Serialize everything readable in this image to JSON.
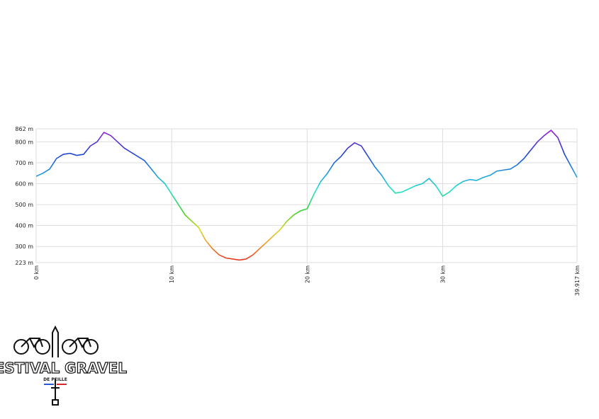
{
  "chart_data": {
    "type": "line",
    "x": [
      0,
      0.5,
      1,
      1.5,
      2,
      2.5,
      3,
      3.5,
      4,
      4.5,
      5,
      5.5,
      6,
      6.5,
      7,
      7.5,
      8,
      8.5,
      9,
      9.5,
      10,
      10.5,
      11,
      11.5,
      12,
      12.5,
      13,
      13.5,
      14,
      14.5,
      15,
      15.5,
      16,
      16.5,
      17,
      17.5,
      18,
      18.5,
      19,
      19.5,
      20,
      20.5,
      21,
      21.5,
      22,
      22.5,
      23,
      23.5,
      24,
      24.5,
      25,
      25.5,
      26,
      26.5,
      27,
      27.5,
      28,
      28.5,
      29,
      29.5,
      30,
      30.5,
      31,
      31.5,
      32,
      32.5,
      33,
      33.5,
      34,
      34.5,
      35,
      35.5,
      36,
      36.5,
      37,
      37.5,
      38,
      38.5,
      39,
      39.5,
      39.917
    ],
    "series": [
      {
        "values": [
          635,
          650,
          670,
          720,
          740,
          745,
          735,
          740,
          780,
          800,
          845,
          830,
          800,
          770,
          750,
          730,
          710,
          670,
          630,
          600,
          550,
          500,
          450,
          420,
          390,
          330,
          290,
          260,
          245,
          240,
          235,
          240,
          260,
          290,
          320,
          350,
          380,
          420,
          450,
          470,
          480,
          550,
          610,
          650,
          700,
          730,
          770,
          795,
          780,
          730,
          680,
          640,
          590,
          555,
          560,
          575,
          590,
          600,
          625,
          590,
          540,
          560,
          590,
          610,
          620,
          615,
          630,
          640,
          660,
          665,
          670,
          690,
          720,
          760,
          800,
          830,
          855,
          820,
          740,
          680,
          630
        ]
      }
    ],
    "xlim": [
      0,
      39.917
    ],
    "xticks": [
      {
        "value": 0,
        "label": "0 km"
      },
      {
        "value": 10,
        "label": "10 km"
      },
      {
        "value": 20,
        "label": "20 km"
      },
      {
        "value": 30,
        "label": "30 km"
      },
      {
        "value": 39.917,
        "label": "39.917 km"
      }
    ],
    "ylim": [
      223,
      862
    ],
    "yticks": [
      {
        "value": 223,
        "label": "223 m"
      },
      {
        "value": 300,
        "label": "300 m"
      },
      {
        "value": 400,
        "label": "400 m"
      },
      {
        "value": 500,
        "label": "500 m"
      },
      {
        "value": 600,
        "label": "600 m"
      },
      {
        "value": 700,
        "label": "700 m"
      },
      {
        "value": 800,
        "label": "800 m"
      },
      {
        "value": 862,
        "label": "862 m"
      }
    ],
    "grid": true
  },
  "logo": {
    "title": "FESTIVAL GRAVEL",
    "subtitle": "DE PEILLE"
  }
}
